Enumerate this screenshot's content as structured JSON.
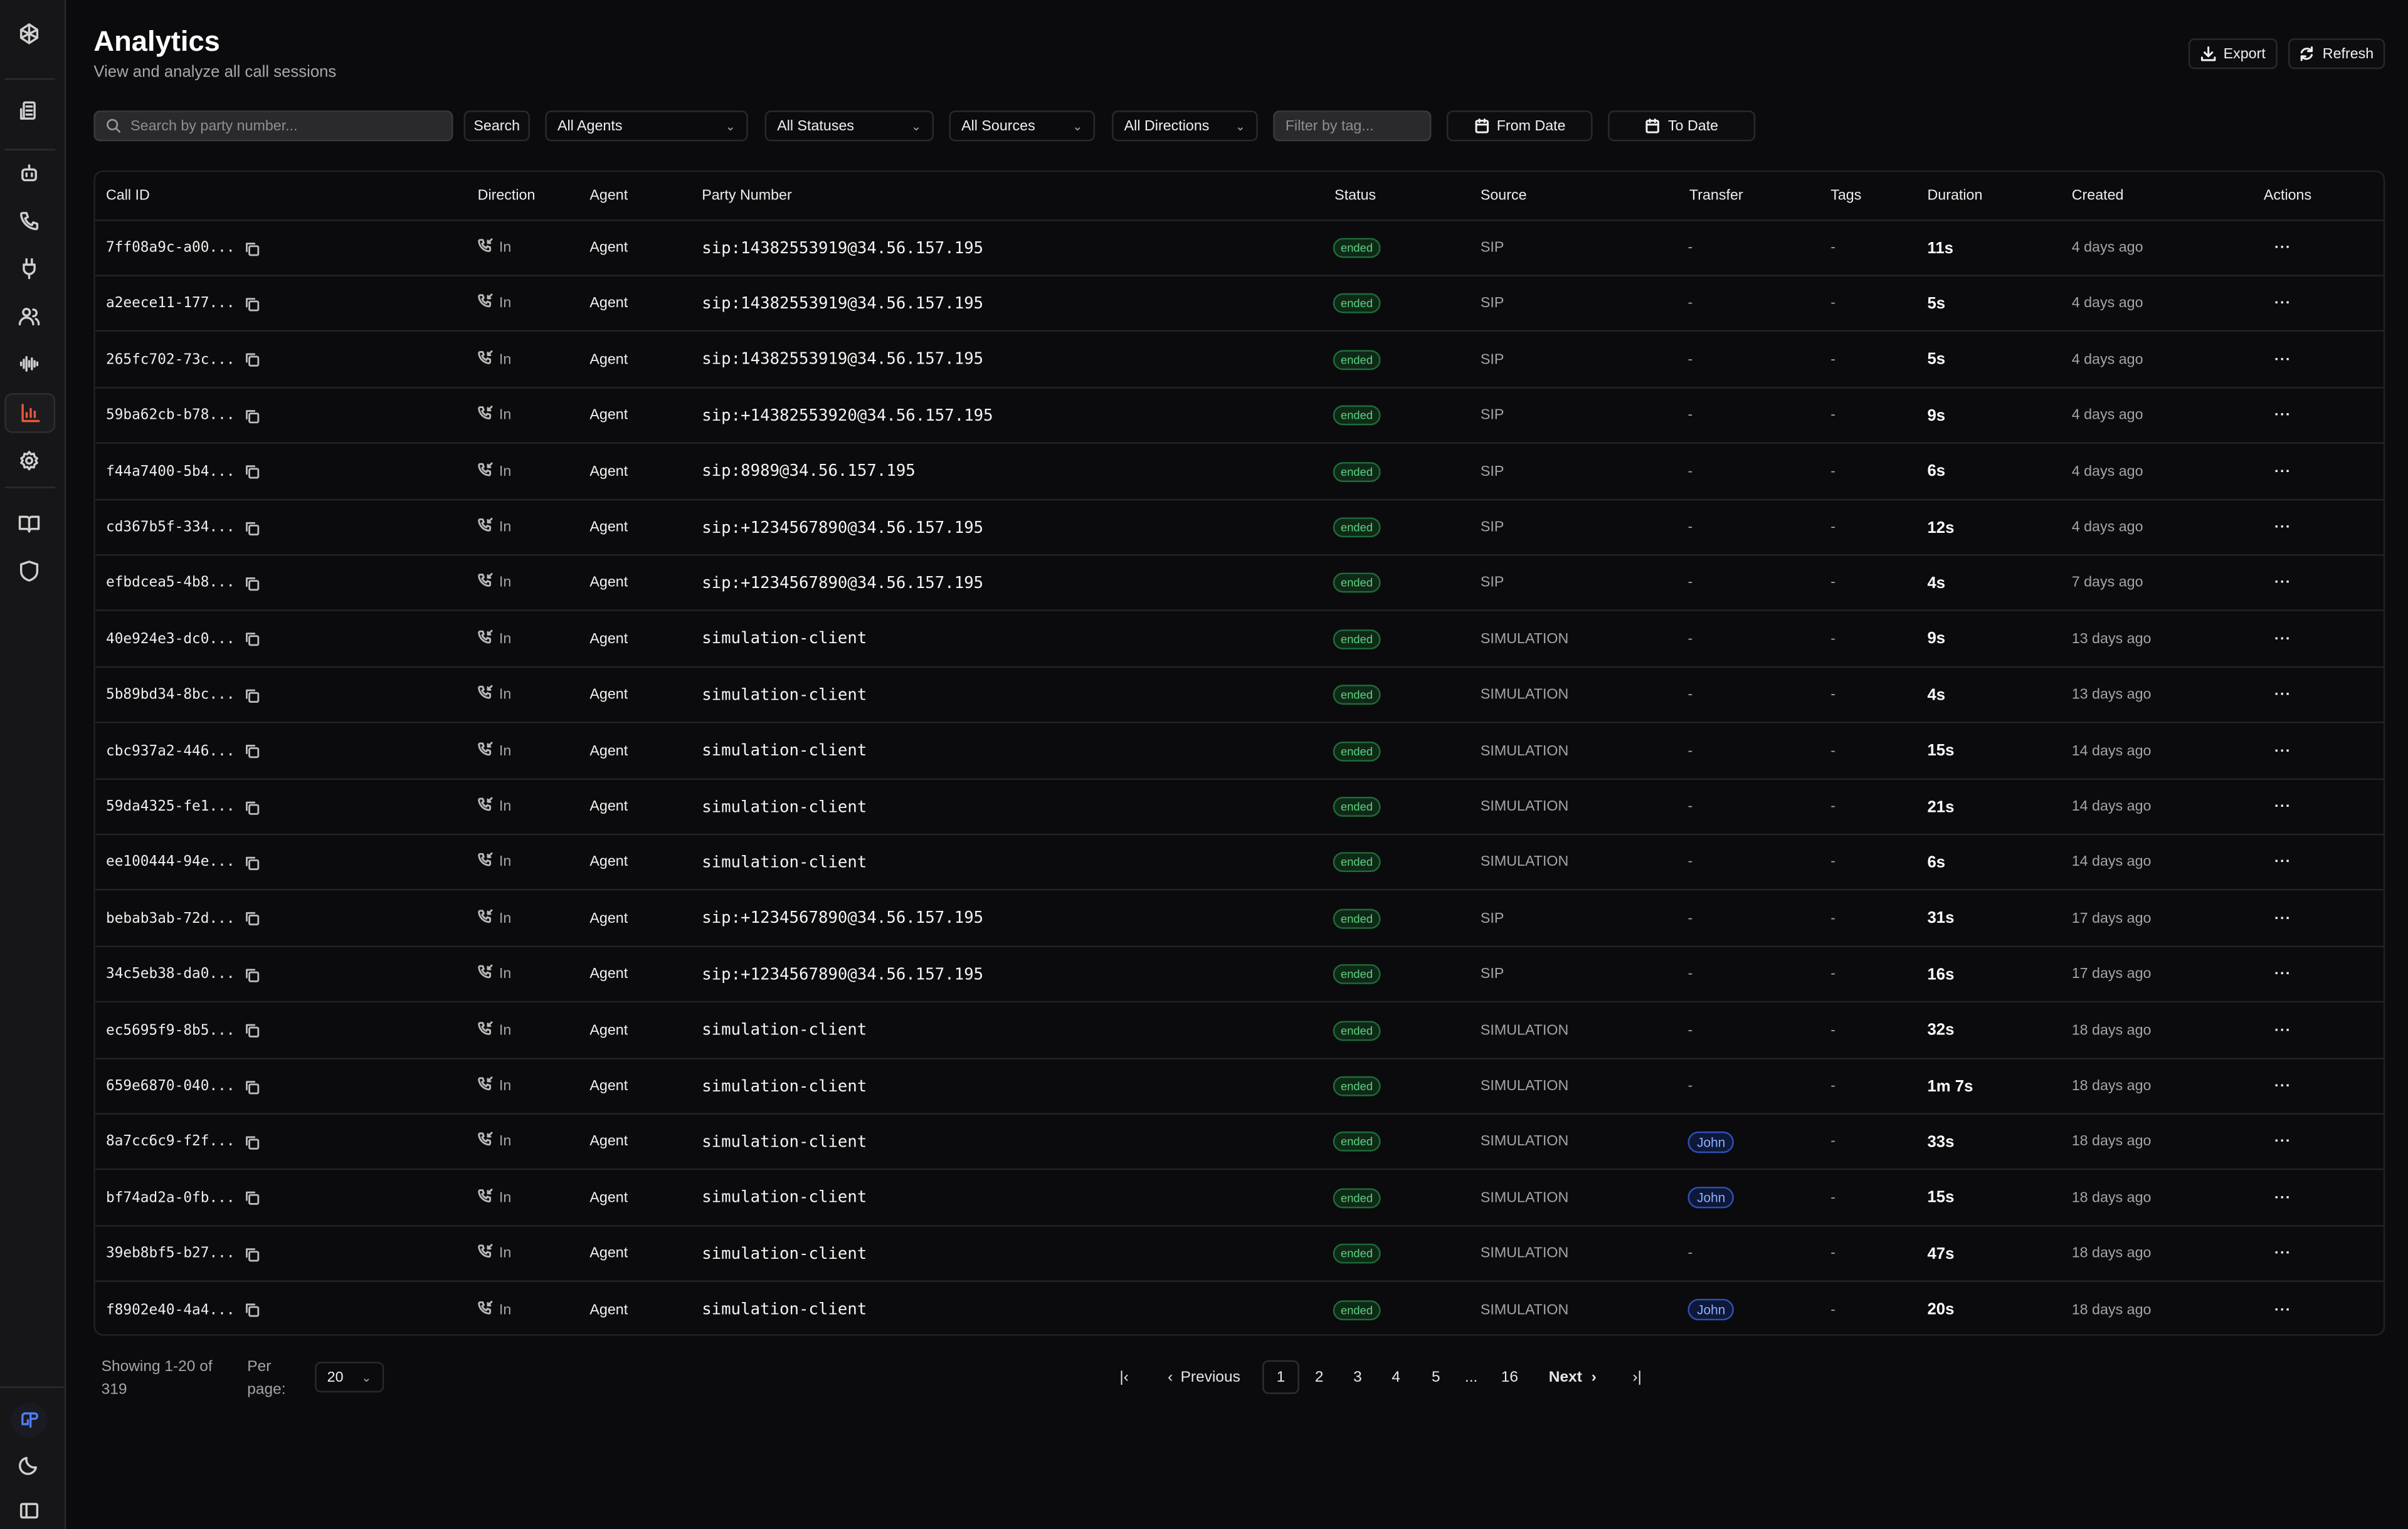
{
  "header": {
    "title": "Analytics",
    "subtitle": "View and analyze all call sessions",
    "export_label": "Export",
    "refresh_label": "Refresh"
  },
  "sidebar": {
    "items": [
      "logo-icon",
      "building-icon",
      "bot-icon",
      "phone-icon",
      "plug-icon",
      "users-icon",
      "waveform-icon",
      "analytics-icon",
      "gear-icon",
      "book-icon",
      "shield-icon"
    ],
    "active": "analytics",
    "accent": "#e8583a"
  },
  "filters": {
    "search_placeholder": "Search by party number...",
    "search_button": "Search",
    "agents": "All Agents",
    "statuses": "All Statuses",
    "sources": "All Sources",
    "directions": "All Directions",
    "tag_placeholder": "Filter by tag...",
    "from_date": "From Date",
    "to_date": "To Date"
  },
  "table": {
    "columns": [
      "Call ID",
      "Direction",
      "Agent",
      "Party Number",
      "Status",
      "Source",
      "Transfer",
      "Tags",
      "Duration",
      "Created",
      "Actions"
    ],
    "rows": [
      {
        "id": "7ff08a9c-a00...",
        "direction": "In",
        "agent": "Agent",
        "party": "sip:14382553919@34.56.157.195",
        "status": "ended",
        "source": "SIP",
        "transfer": "-",
        "tags": "-",
        "duration": "11s",
        "created": "4 days ago"
      },
      {
        "id": "a2eece11-177...",
        "direction": "In",
        "agent": "Agent",
        "party": "sip:14382553919@34.56.157.195",
        "status": "ended",
        "source": "SIP",
        "transfer": "-",
        "tags": "-",
        "duration": "5s",
        "created": "4 days ago"
      },
      {
        "id": "265fc702-73c...",
        "direction": "In",
        "agent": "Agent",
        "party": "sip:14382553919@34.56.157.195",
        "status": "ended",
        "source": "SIP",
        "transfer": "-",
        "tags": "-",
        "duration": "5s",
        "created": "4 days ago"
      },
      {
        "id": "59ba62cb-b78...",
        "direction": "In",
        "agent": "Agent",
        "party": "sip:+14382553920@34.56.157.195",
        "status": "ended",
        "source": "SIP",
        "transfer": "-",
        "tags": "-",
        "duration": "9s",
        "created": "4 days ago"
      },
      {
        "id": "f44a7400-5b4...",
        "direction": "In",
        "agent": "Agent",
        "party": "sip:8989@34.56.157.195",
        "status": "ended",
        "source": "SIP",
        "transfer": "-",
        "tags": "-",
        "duration": "6s",
        "created": "4 days ago"
      },
      {
        "id": "cd367b5f-334...",
        "direction": "In",
        "agent": "Agent",
        "party": "sip:+1234567890@34.56.157.195",
        "status": "ended",
        "source": "SIP",
        "transfer": "-",
        "tags": "-",
        "duration": "12s",
        "created": "4 days ago"
      },
      {
        "id": "efbdcea5-4b8...",
        "direction": "In",
        "agent": "Agent",
        "party": "sip:+1234567890@34.56.157.195",
        "status": "ended",
        "source": "SIP",
        "transfer": "-",
        "tags": "-",
        "duration": "4s",
        "created": "7 days ago"
      },
      {
        "id": "40e924e3-dc0...",
        "direction": "In",
        "agent": "Agent",
        "party": "simulation-client",
        "status": "ended",
        "source": "SIMULATION",
        "transfer": "-",
        "tags": "-",
        "duration": "9s",
        "created": "13 days ago"
      },
      {
        "id": "5b89bd34-8bc...",
        "direction": "In",
        "agent": "Agent",
        "party": "simulation-client",
        "status": "ended",
        "source": "SIMULATION",
        "transfer": "-",
        "tags": "-",
        "duration": "4s",
        "created": "13 days ago"
      },
      {
        "id": "cbc937a2-446...",
        "direction": "In",
        "agent": "Agent",
        "party": "simulation-client",
        "status": "ended",
        "source": "SIMULATION",
        "transfer": "-",
        "tags": "-",
        "duration": "15s",
        "created": "14 days ago"
      },
      {
        "id": "59da4325-fe1...",
        "direction": "In",
        "agent": "Agent",
        "party": "simulation-client",
        "status": "ended",
        "source": "SIMULATION",
        "transfer": "-",
        "tags": "-",
        "duration": "21s",
        "created": "14 days ago"
      },
      {
        "id": "ee100444-94e...",
        "direction": "In",
        "agent": "Agent",
        "party": "simulation-client",
        "status": "ended",
        "source": "SIMULATION",
        "transfer": "-",
        "tags": "-",
        "duration": "6s",
        "created": "14 days ago"
      },
      {
        "id": "bebab3ab-72d...",
        "direction": "In",
        "agent": "Agent",
        "party": "sip:+1234567890@34.56.157.195",
        "status": "ended",
        "source": "SIP",
        "transfer": "-",
        "tags": "-",
        "duration": "31s",
        "created": "17 days ago"
      },
      {
        "id": "34c5eb38-da0...",
        "direction": "In",
        "agent": "Agent",
        "party": "sip:+1234567890@34.56.157.195",
        "status": "ended",
        "source": "SIP",
        "transfer": "-",
        "tags": "-",
        "duration": "16s",
        "created": "17 days ago"
      },
      {
        "id": "ec5695f9-8b5...",
        "direction": "In",
        "agent": "Agent",
        "party": "simulation-client",
        "status": "ended",
        "source": "SIMULATION",
        "transfer": "-",
        "tags": "-",
        "duration": "32s",
        "created": "18 days ago"
      },
      {
        "id": "659e6870-040...",
        "direction": "In",
        "agent": "Agent",
        "party": "simulation-client",
        "status": "ended",
        "source": "SIMULATION",
        "transfer": "-",
        "tags": "-",
        "duration": "1m 7s",
        "created": "18 days ago"
      },
      {
        "id": "8a7cc6c9-f2f...",
        "direction": "In",
        "agent": "Agent",
        "party": "simulation-client",
        "status": "ended",
        "source": "SIMULATION",
        "transfer": "John",
        "tags": "-",
        "duration": "33s",
        "created": "18 days ago"
      },
      {
        "id": "bf74ad2a-0fb...",
        "direction": "In",
        "agent": "Agent",
        "party": "simulation-client",
        "status": "ended",
        "source": "SIMULATION",
        "transfer": "John",
        "tags": "-",
        "duration": "15s",
        "created": "18 days ago"
      },
      {
        "id": "39eb8bf5-b27...",
        "direction": "In",
        "agent": "Agent",
        "party": "simulation-client",
        "status": "ended",
        "source": "SIMULATION",
        "transfer": "-",
        "tags": "-",
        "duration": "47s",
        "created": "18 days ago"
      },
      {
        "id": "f8902e40-4a4...",
        "direction": "In",
        "agent": "Agent",
        "party": "simulation-client",
        "status": "ended",
        "source": "SIMULATION",
        "transfer": "John",
        "tags": "-",
        "duration": "20s",
        "created": "18 days ago"
      }
    ]
  },
  "pagination": {
    "showing": "Showing 1-20 of 319",
    "per_page_label": "Per page:",
    "per_page": "20",
    "previous": "Previous",
    "next": "Next",
    "pages": [
      "1",
      "2",
      "3",
      "4",
      "5",
      "...",
      "16"
    ],
    "current": "1"
  },
  "colors": {
    "ended_badge": "#5fd07f",
    "transfer_badge": "#8ab0ff",
    "accent": "#e8583a"
  }
}
